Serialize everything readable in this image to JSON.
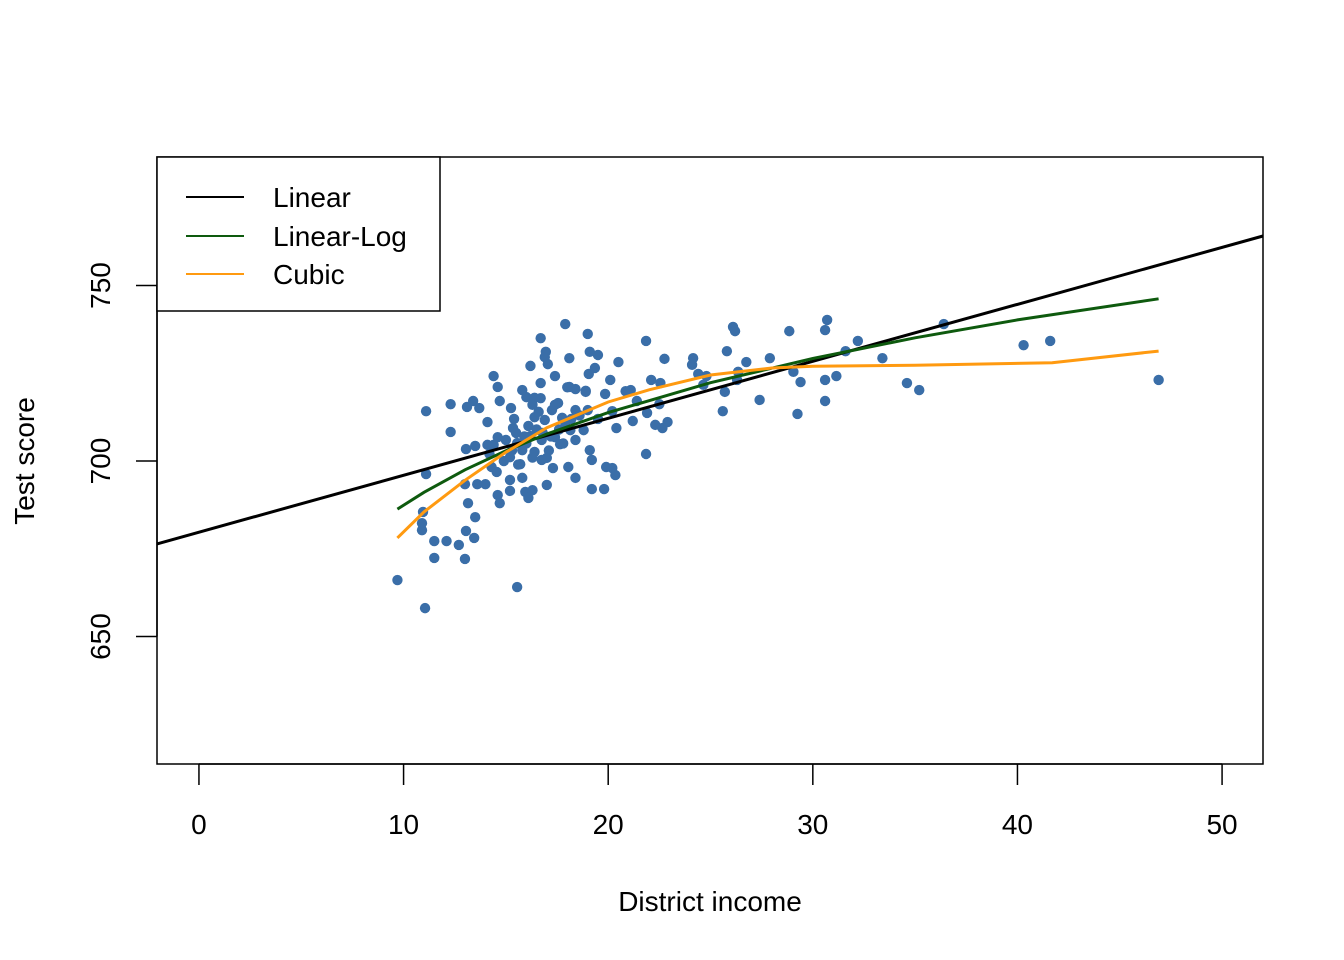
{
  "chart_data": {
    "type": "scatter",
    "title": "",
    "xlabel": "District income",
    "ylabel": "Test score",
    "xlim": [
      -2.05,
      52
    ],
    "ylim": [
      613.7,
      786.6
    ],
    "xticks": [
      0,
      10,
      20,
      30,
      40,
      50
    ],
    "yticks": [
      650,
      700,
      750
    ],
    "grid": false,
    "legend_position": "top-left",
    "point_color": "#3A6EA8",
    "points": [
      [
        9.7,
        666.1
      ],
      [
        11.05,
        658.1
      ],
      [
        11.1,
        714.2
      ],
      [
        11.1,
        696.3
      ],
      [
        10.95,
        685.5
      ],
      [
        10.9,
        682.3
      ],
      [
        10.9,
        680.3
      ],
      [
        11.5,
        677.2
      ],
      [
        11.5,
        672.4
      ],
      [
        12.1,
        677.2
      ],
      [
        12.7,
        676.1
      ],
      [
        13.0,
        672.1
      ],
      [
        13.05,
        680.1
      ],
      [
        13.45,
        678.1
      ],
      [
        13.5,
        684.0
      ],
      [
        13.15,
        688.0
      ],
      [
        12.3,
        716.2
      ],
      [
        12.3,
        708.3
      ],
      [
        13.1,
        715.4
      ],
      [
        13.4,
        717.1
      ],
      [
        13.7,
        715.1
      ],
      [
        13.05,
        703.4
      ],
      [
        13.5,
        704.3
      ],
      [
        14.1,
        704.6
      ],
      [
        14.4,
        724.2
      ],
      [
        14.6,
        721.1
      ],
      [
        14.7,
        717.1
      ],
      [
        14.1,
        711.1
      ],
      [
        14.6,
        706.8
      ],
      [
        14.4,
        704.6
      ],
      [
        14.3,
        698.3
      ],
      [
        14.55,
        696.9
      ],
      [
        14.0,
        693.4
      ],
      [
        14.6,
        690.3
      ],
      [
        14.7,
        688.0
      ],
      [
        13.6,
        693.4
      ],
      [
        13.0,
        693.4
      ],
      [
        15.2,
        691.5
      ],
      [
        15.2,
        694.6
      ],
      [
        15.2,
        701.1
      ],
      [
        15.25,
        715.1
      ],
      [
        15.35,
        709.4
      ],
      [
        15.55,
        705.1
      ],
      [
        15.8,
        703.1
      ],
      [
        15.7,
        699.1
      ],
      [
        15.8,
        695.2
      ],
      [
        15.95,
        691.2
      ],
      [
        16.1,
        689.5
      ],
      [
        15.55,
        664.1
      ],
      [
        15.8,
        720.2
      ],
      [
        16.0,
        718.2
      ],
      [
        16.2,
        727.1
      ],
      [
        16.3,
        716.0
      ],
      [
        16.4,
        712.5
      ],
      [
        16.2,
        707.1
      ],
      [
        16.4,
        702.6
      ],
      [
        16.7,
        735.0
      ],
      [
        16.9,
        729.6
      ],
      [
        16.95,
        731.1
      ],
      [
        17.05,
        727.6
      ],
      [
        16.7,
        722.2
      ],
      [
        16.7,
        717.9
      ],
      [
        16.6,
        714.0
      ],
      [
        16.9,
        711.7
      ],
      [
        16.75,
        706.0
      ],
      [
        17.0,
        700.9
      ],
      [
        16.75,
        700.3
      ],
      [
        17.0,
        693.2
      ],
      [
        16.3,
        691.7
      ],
      [
        17.25,
        714.5
      ],
      [
        17.4,
        724.2
      ],
      [
        17.55,
        716.5
      ],
      [
        17.75,
        712.3
      ],
      [
        17.4,
        706.8
      ],
      [
        17.65,
        704.8
      ],
      [
        17.3,
        698.0
      ],
      [
        17.9,
        739.0
      ],
      [
        18.1,
        729.3
      ],
      [
        18.1,
        721.1
      ],
      [
        18.4,
        720.5
      ],
      [
        18.4,
        714.5
      ],
      [
        18.15,
        708.8
      ],
      [
        18.05,
        698.3
      ],
      [
        18.4,
        695.2
      ],
      [
        18.4,
        706.0
      ],
      [
        18.8,
        708.8
      ],
      [
        19.0,
        736.2
      ],
      [
        19.1,
        731.1
      ],
      [
        19.5,
        730.2
      ],
      [
        19.35,
        726.5
      ],
      [
        19.05,
        724.8
      ],
      [
        18.9,
        719.7
      ],
      [
        19.0,
        714.5
      ],
      [
        19.1,
        703.1
      ],
      [
        19.2,
        700.3
      ],
      [
        19.2,
        692.0
      ],
      [
        19.8,
        692.0
      ],
      [
        19.85,
        719.1
      ],
      [
        20.1,
        723.1
      ],
      [
        19.9,
        698.3
      ],
      [
        20.2,
        698.0
      ],
      [
        20.35,
        696.0
      ],
      [
        20.2,
        714.2
      ],
      [
        20.4,
        709.4
      ],
      [
        20.5,
        728.2
      ],
      [
        20.85,
        719.9
      ],
      [
        21.1,
        720.2
      ],
      [
        21.2,
        711.4
      ],
      [
        21.4,
        717.1
      ],
      [
        21.85,
        734.2
      ],
      [
        21.85,
        702.0
      ],
      [
        21.9,
        713.7
      ],
      [
        22.1,
        723.1
      ],
      [
        22.3,
        710.3
      ],
      [
        22.5,
        716.2
      ],
      [
        22.55,
        722.2
      ],
      [
        22.75,
        729.1
      ],
      [
        22.65,
        709.4
      ],
      [
        22.9,
        711.1
      ],
      [
        24.1,
        727.4
      ],
      [
        24.15,
        729.3
      ],
      [
        24.4,
        724.8
      ],
      [
        24.65,
        721.7
      ],
      [
        24.8,
        724.2
      ],
      [
        25.6,
        714.2
      ],
      [
        25.7,
        719.7
      ],
      [
        25.8,
        731.3
      ],
      [
        26.1,
        738.2
      ],
      [
        26.2,
        737.0
      ],
      [
        26.3,
        723.1
      ],
      [
        26.35,
        725.4
      ],
      [
        26.75,
        728.2
      ],
      [
        27.4,
        717.4
      ],
      [
        27.9,
        729.3
      ],
      [
        28.85,
        737.0
      ],
      [
        29.05,
        725.4
      ],
      [
        29.25,
        713.4
      ],
      [
        29.4,
        722.5
      ],
      [
        30.6,
        737.3
      ],
      [
        30.7,
        740.2
      ],
      [
        30.6,
        723.1
      ],
      [
        30.6,
        717.1
      ],
      [
        31.15,
        724.2
      ],
      [
        31.6,
        731.3
      ],
      [
        32.2,
        734.2
      ],
      [
        33.4,
        729.3
      ],
      [
        34.6,
        722.2
      ],
      [
        35.2,
        720.2
      ],
      [
        36.4,
        739.0
      ],
      [
        40.3,
        733.0
      ],
      [
        41.6,
        734.2
      ],
      [
        46.9,
        723.1
      ],
      [
        15.0,
        706
      ],
      [
        15.5,
        708
      ],
      [
        15.9,
        707
      ],
      [
        16.1,
        710
      ],
      [
        16.5,
        709
      ],
      [
        16.8,
        708
      ],
      [
        17.2,
        707
      ],
      [
        17.6,
        709
      ],
      [
        17.9,
        711
      ],
      [
        18.2,
        712
      ],
      [
        15.3,
        703
      ],
      [
        16.0,
        705
      ],
      [
        16.3,
        701
      ],
      [
        14.9,
        700
      ],
      [
        15.6,
        699
      ],
      [
        14.2,
        702
      ],
      [
        17.1,
        703
      ],
      [
        17.8,
        705
      ],
      [
        18.6,
        713
      ],
      [
        19.5,
        712
      ],
      [
        18.9,
        720
      ],
      [
        16.4,
        718
      ],
      [
        15.4,
        712
      ],
      [
        17.4,
        716
      ],
      [
        18.0,
        721
      ]
    ],
    "series": [
      {
        "name": "Linear",
        "color": "#000000",
        "x": [
          -2.05,
          52
        ],
        "y": [
          676.4,
          764.1
        ]
      },
      {
        "name": "Linear-Log",
        "color": "#0E5A0E",
        "x": [
          9.7,
          11,
          13,
          15,
          17,
          20,
          25,
          30,
          35,
          40,
          46.9
        ],
        "y": [
          686.3,
          691.1,
          697.5,
          702.9,
          707.7,
          713.8,
          722.3,
          729.2,
          735.1,
          740.2,
          746.2
        ]
      },
      {
        "name": "Cubic",
        "color": "#FF9A10",
        "x": [
          9.7,
          11,
          13,
          15,
          17,
          20,
          22,
          25,
          28,
          30,
          35,
          41.7,
          46.9
        ],
        "y": [
          678.1,
          685.5,
          694.5,
          702.5,
          709.5,
          716.8,
          720.3,
          724.5,
          726.5,
          727.0,
          727.3,
          728.0,
          731.3
        ]
      }
    ]
  }
}
